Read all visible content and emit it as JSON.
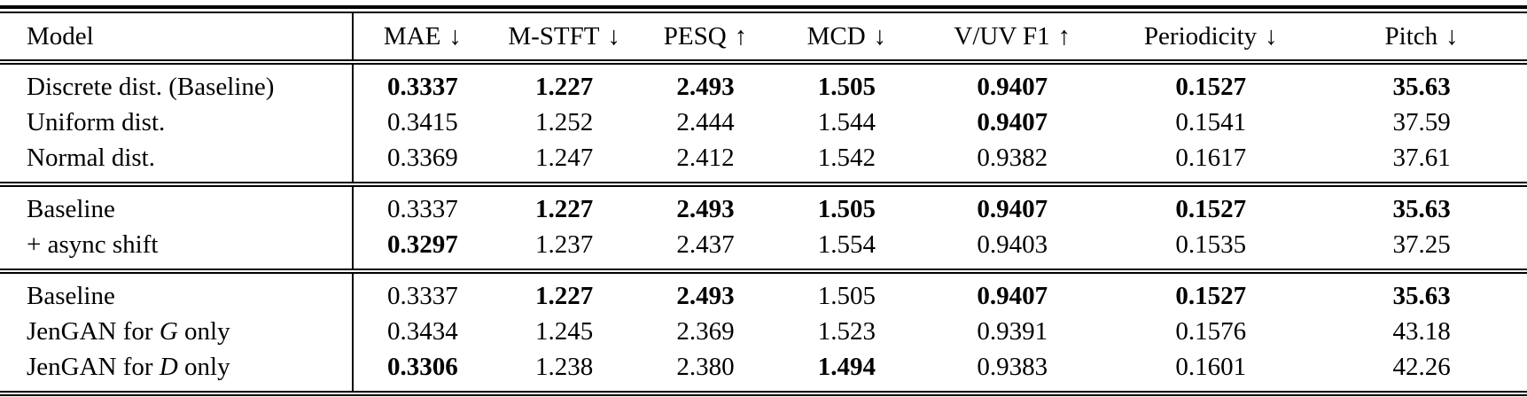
{
  "colors": {
    "text": "#000000",
    "background": "#ffffff",
    "rule": "#000000"
  },
  "table": {
    "columns": [
      {
        "label": "Model",
        "arrow": ""
      },
      {
        "label": "MAE",
        "arrow": "↓"
      },
      {
        "label": "M-STFT",
        "arrow": "↓"
      },
      {
        "label": "PESQ",
        "arrow": "↑"
      },
      {
        "label": "MCD",
        "arrow": "↓"
      },
      {
        "label": "V/UV F1",
        "arrow": "↑"
      },
      {
        "label": "Periodicity",
        "arrow": "↓"
      },
      {
        "label": "Pitch",
        "arrow": "↓"
      }
    ],
    "sections": [
      {
        "rows": [
          {
            "label": {
              "text": "Discrete dist. (Baseline)",
              "var": "",
              "suffix": ""
            },
            "values": [
              "0.3337",
              "1.227",
              "2.493",
              "1.505",
              "0.9407",
              "0.1527",
              "35.63"
            ],
            "bold": [
              true,
              true,
              true,
              true,
              true,
              true,
              true
            ]
          },
          {
            "label": {
              "text": "Uniform dist.",
              "var": "",
              "suffix": ""
            },
            "values": [
              "0.3415",
              "1.252",
              "2.444",
              "1.544",
              "0.9407",
              "0.1541",
              "37.59"
            ],
            "bold": [
              false,
              false,
              false,
              false,
              true,
              false,
              false
            ]
          },
          {
            "label": {
              "text": "Normal dist.",
              "var": "",
              "suffix": ""
            },
            "values": [
              "0.3369",
              "1.247",
              "2.412",
              "1.542",
              "0.9382",
              "0.1617",
              "37.61"
            ],
            "bold": [
              false,
              false,
              false,
              false,
              false,
              false,
              false
            ]
          }
        ]
      },
      {
        "rows": [
          {
            "label": {
              "text": "Baseline",
              "var": "",
              "suffix": ""
            },
            "values": [
              "0.3337",
              "1.227",
              "2.493",
              "1.505",
              "0.9407",
              "0.1527",
              "35.63"
            ],
            "bold": [
              false,
              true,
              true,
              true,
              true,
              true,
              true
            ]
          },
          {
            "label": {
              "text": "+ async shift",
              "var": "",
              "suffix": ""
            },
            "values": [
              "0.3297",
              "1.237",
              "2.437",
              "1.554",
              "0.9403",
              "0.1535",
              "37.25"
            ],
            "bold": [
              true,
              false,
              false,
              false,
              false,
              false,
              false
            ]
          }
        ]
      },
      {
        "rows": [
          {
            "label": {
              "text": "Baseline",
              "var": "",
              "suffix": ""
            },
            "values": [
              "0.3337",
              "1.227",
              "2.493",
              "1.505",
              "0.9407",
              "0.1527",
              "35.63"
            ],
            "bold": [
              false,
              true,
              true,
              false,
              true,
              true,
              true
            ]
          },
          {
            "label": {
              "text": "JenGAN for ",
              "var": "G",
              "suffix": " only"
            },
            "values": [
              "0.3434",
              "1.245",
              "2.369",
              "1.523",
              "0.9391",
              "0.1576",
              "43.18"
            ],
            "bold": [
              false,
              false,
              false,
              false,
              false,
              false,
              false
            ]
          },
          {
            "label": {
              "text": "JenGAN for ",
              "var": "D",
              "suffix": " only"
            },
            "values": [
              "0.3306",
              "1.238",
              "2.380",
              "1.494",
              "0.9383",
              "0.1601",
              "42.26"
            ],
            "bold": [
              true,
              false,
              false,
              true,
              false,
              false,
              false
            ]
          }
        ]
      }
    ]
  }
}
